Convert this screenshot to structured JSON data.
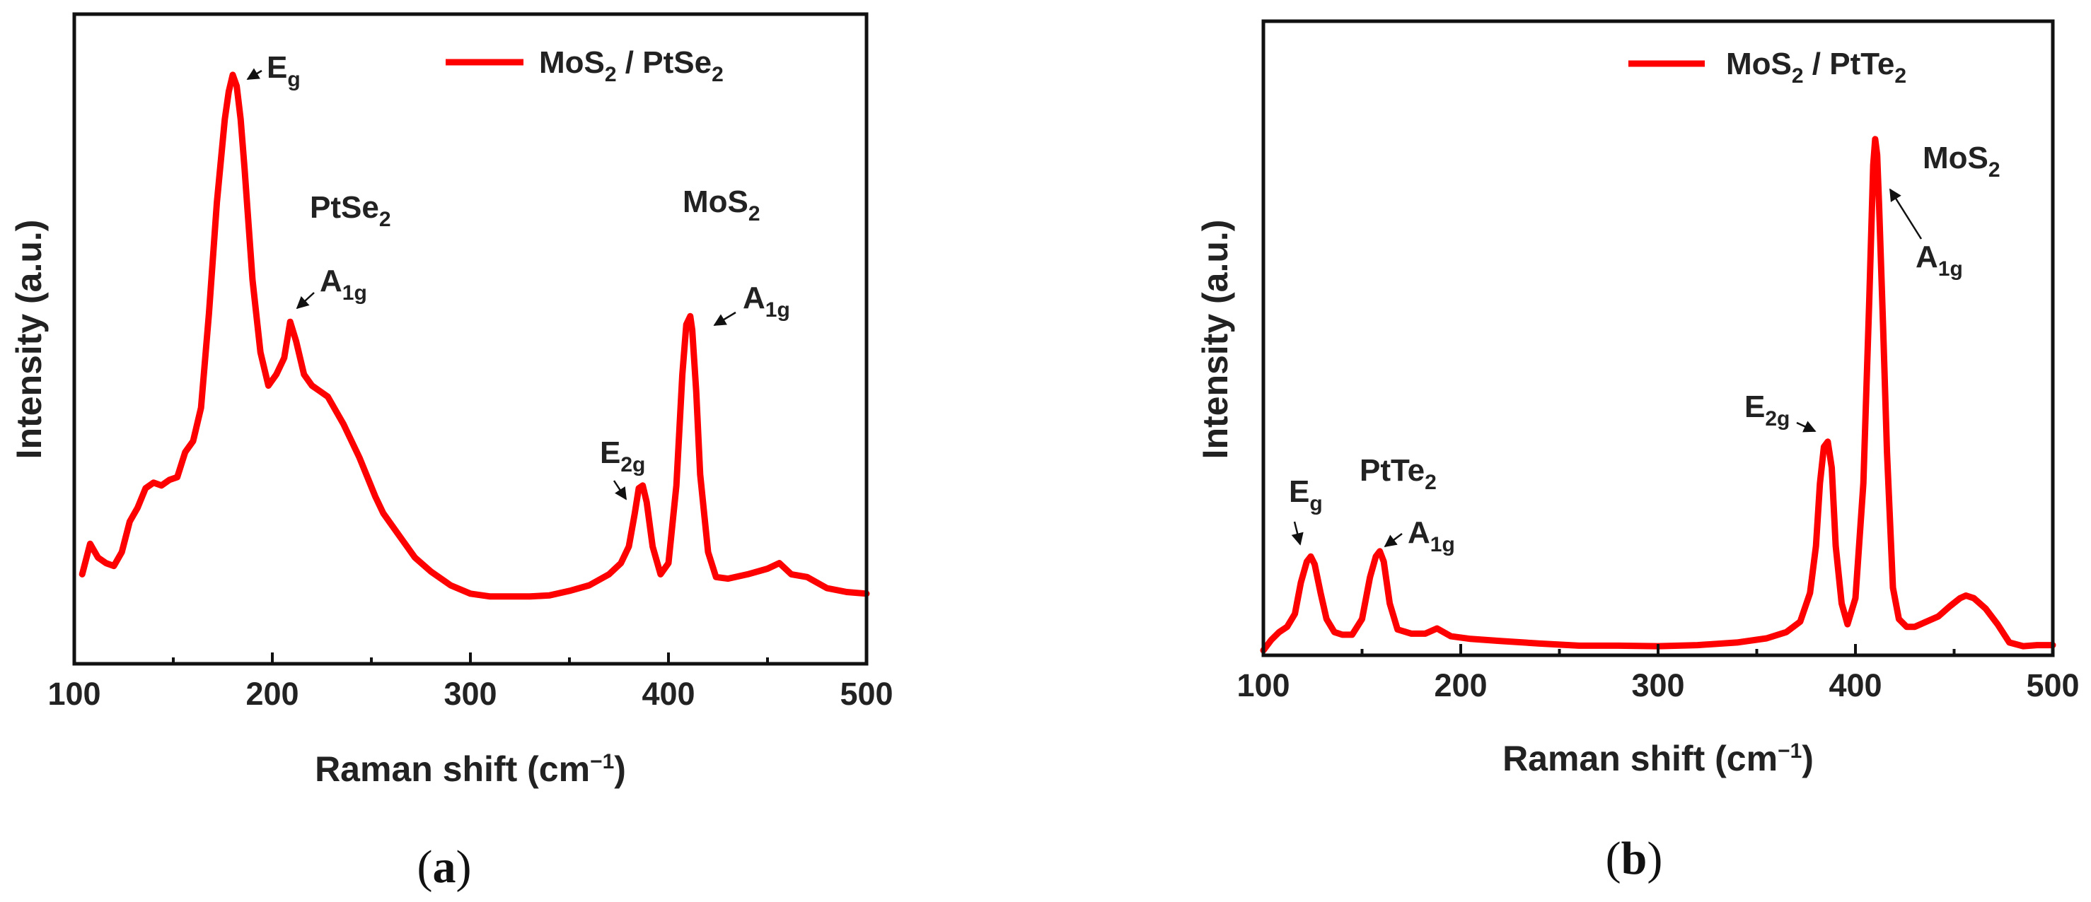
{
  "chart_data": [
    {
      "type": "line",
      "panel_label": "(a)",
      "xlabel": "Raman shift (cm−1)",
      "ylabel": "Intensity (a.u.)",
      "xlim": [
        100,
        500
      ],
      "ylim": [
        0,
        1
      ],
      "x_ticks": [
        100,
        200,
        300,
        400,
        500
      ],
      "color": "#ff0000",
      "legend": {
        "name": "MoS2 / PtSe2",
        "placement": "top-right"
      },
      "series": [
        {
          "name": "MoS2 / PtSe2",
          "x": [
            104,
            108,
            112,
            116,
            120,
            124,
            128,
            132,
            136,
            140,
            144,
            148,
            152,
            156,
            160,
            164,
            168,
            172,
            176,
            178,
            180,
            182,
            184,
            186,
            188,
            190,
            194,
            198,
            202,
            206,
            209,
            212,
            216,
            220,
            224,
            228,
            232,
            236,
            240,
            244,
            248,
            252,
            256,
            260,
            266,
            272,
            280,
            290,
            300,
            310,
            320,
            330,
            340,
            350,
            360,
            370,
            376,
            380,
            383,
            385,
            387,
            389,
            392,
            396,
            400,
            404,
            407,
            409,
            411,
            412,
            414,
            416,
            420,
            424,
            430,
            440,
            450,
            456,
            462,
            470,
            480,
            490,
            500
          ],
          "y": [
            0.09,
            0.145,
            0.12,
            0.11,
            0.105,
            0.13,
            0.185,
            0.21,
            0.245,
            0.255,
            0.25,
            0.26,
            0.265,
            0.31,
            0.33,
            0.39,
            0.56,
            0.76,
            0.91,
            0.96,
            0.99,
            0.97,
            0.91,
            0.82,
            0.72,
            0.62,
            0.49,
            0.43,
            0.45,
            0.48,
            0.545,
            0.51,
            0.45,
            0.43,
            0.42,
            0.41,
            0.385,
            0.36,
            0.33,
            0.3,
            0.265,
            0.23,
            0.2,
            0.18,
            0.15,
            0.12,
            0.095,
            0.07,
            0.055,
            0.05,
            0.05,
            0.05,
            0.052,
            0.06,
            0.07,
            0.09,
            0.11,
            0.14,
            0.2,
            0.245,
            0.25,
            0.22,
            0.14,
            0.09,
            0.11,
            0.25,
            0.45,
            0.54,
            0.555,
            0.53,
            0.42,
            0.27,
            0.13,
            0.085,
            0.082,
            0.09,
            0.1,
            0.11,
            0.09,
            0.085,
            0.065,
            0.058,
            0.055
          ]
        }
      ],
      "annotations": [
        {
          "text": "E",
          "sub": "g",
          "x": 182
        },
        {
          "text": "PtSe",
          "sub": "2"
        },
        {
          "text": "A",
          "sub": "1g",
          "x": 209
        },
        {
          "text": "MoS",
          "sub": "2"
        },
        {
          "text": "A",
          "sub": "1g",
          "x": 412
        },
        {
          "text": "E",
          "sub": "2g",
          "x": 387
        }
      ]
    },
    {
      "type": "line",
      "panel_label": "(b)",
      "xlabel": "Raman shift (cm−1)",
      "ylabel": "Intensity (a.u.)",
      "xlim": [
        100,
        500
      ],
      "ylim": [
        0,
        1
      ],
      "x_ticks": [
        100,
        200,
        300,
        400,
        500
      ],
      "color": "#ff0000",
      "legend": {
        "name": "MoS2 / PtTe2",
        "placement": "top-right"
      },
      "series": [
        {
          "name": "MoS2 / PtTe2",
          "x": [
            100,
            104,
            108,
            112,
            116,
            119,
            122,
            124,
            126,
            129,
            132,
            136,
            140,
            145,
            150,
            154,
            157,
            159,
            161,
            164,
            168,
            175,
            182,
            188,
            195,
            205,
            220,
            240,
            260,
            280,
            300,
            320,
            340,
            355,
            365,
            372,
            377,
            380,
            382,
            384,
            386,
            388,
            390,
            393,
            396,
            400,
            404,
            407,
            409,
            410,
            411,
            412,
            414,
            416,
            419,
            422,
            426,
            430,
            436,
            442,
            448,
            453,
            456,
            460,
            466,
            472,
            478,
            485,
            492,
            500
          ],
          "y": [
            0.0,
            0.02,
            0.035,
            0.045,
            0.07,
            0.13,
            0.17,
            0.18,
            0.165,
            0.11,
            0.06,
            0.035,
            0.03,
            0.03,
            0.06,
            0.14,
            0.18,
            0.19,
            0.17,
            0.09,
            0.04,
            0.032,
            0.032,
            0.042,
            0.027,
            0.022,
            0.018,
            0.013,
            0.009,
            0.009,
            0.008,
            0.01,
            0.015,
            0.023,
            0.035,
            0.055,
            0.11,
            0.2,
            0.32,
            0.39,
            0.4,
            0.35,
            0.2,
            0.09,
            0.05,
            0.1,
            0.32,
            0.67,
            0.93,
            0.98,
            0.95,
            0.85,
            0.62,
            0.38,
            0.12,
            0.06,
            0.045,
            0.045,
            0.055,
            0.065,
            0.085,
            0.1,
            0.105,
            0.1,
            0.08,
            0.05,
            0.015,
            0.008,
            0.01,
            0.01
          ]
        }
      ],
      "annotations": [
        {
          "text": "E",
          "sub": "g",
          "x": 123
        },
        {
          "text": "PtTe",
          "sub": "2"
        },
        {
          "text": "A",
          "sub": "1g",
          "x": 159
        },
        {
          "text": "E",
          "sub": "2g",
          "x": 386
        },
        {
          "text": "MoS",
          "sub": "2"
        },
        {
          "text": "A",
          "sub": "1g",
          "x": 410
        }
      ]
    }
  ]
}
